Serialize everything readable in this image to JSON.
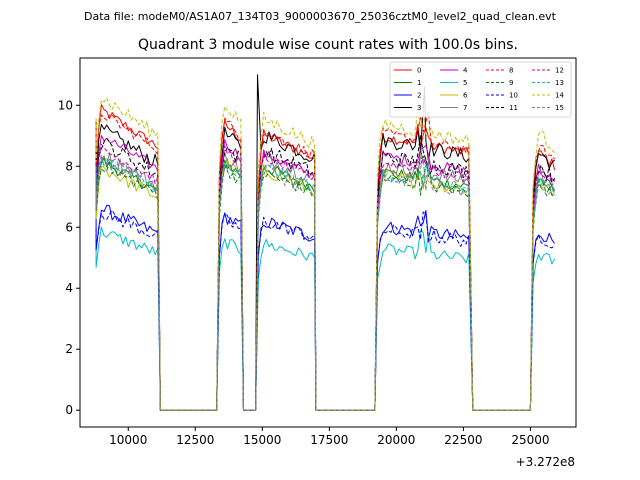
{
  "chart_data": {
    "type": "line",
    "suptitle": "Data file: modeM0/AS1A07_134T03_9000003670_25036cztM0_level2_quad_clean.evt",
    "title": "Quadrant 3 module wise count rates with 100.0s bins.",
    "xlabel": "",
    "ylabel": "",
    "x_offset_label": "+3.272e8",
    "xlim": [
      8200,
      26700
    ],
    "ylim": [
      -0.55,
      11.55
    ],
    "x_ticks": [
      10000,
      12500,
      15000,
      17500,
      20000,
      22500,
      25000
    ],
    "x_tick_labels": [
      "10000",
      "12500",
      "15000",
      "17500",
      "20000",
      "22500",
      "25000"
    ],
    "y_ticks": [
      0,
      2,
      4,
      6,
      8,
      10
    ],
    "y_tick_labels": [
      "0",
      "2",
      "4",
      "6",
      "8",
      "10"
    ],
    "gaps": [
      [
        11200,
        13300
      ],
      [
        14300,
        14750
      ],
      [
        17000,
        19200
      ],
      [
        22850,
        25000
      ]
    ],
    "segments": [
      [
        8800,
        11100
      ],
      [
        13400,
        14200
      ],
      [
        14850,
        16950
      ],
      [
        19300,
        22750
      ],
      [
        25100,
        25900
      ]
    ],
    "spikes": [
      [
        14820,
        11.0
      ],
      [
        21050,
        10.6
      ]
    ],
    "series": [
      {
        "name": "0",
        "color": "#ff0000",
        "dashed": false,
        "levels": [
          9.4,
          9.0,
          8.6,
          8.5,
          8.1
        ]
      },
      {
        "name": "1",
        "color": "#008000",
        "dashed": false,
        "levels": [
          7.8,
          7.8,
          7.6,
          7.4,
          7.3
        ]
      },
      {
        "name": "2",
        "color": "#0000ff",
        "dashed": false,
        "levels": [
          6.3,
          6.1,
          5.9,
          5.7,
          5.6
        ]
      },
      {
        "name": "3",
        "color": "#000000",
        "dashed": false,
        "levels": [
          8.8,
          8.7,
          8.6,
          8.4,
          8.1
        ]
      },
      {
        "name": "4",
        "color": "#bf00bf",
        "dashed": false,
        "levels": [
          8.6,
          8.4,
          8.0,
          7.9,
          7.6
        ]
      },
      {
        "name": "5",
        "color": "#00bfbf",
        "dashed": false,
        "levels": [
          5.6,
          5.3,
          5.2,
          5.0,
          4.9
        ]
      },
      {
        "name": "6",
        "color": "#bfbf00",
        "dashed": false,
        "levels": [
          7.6,
          7.8,
          7.5,
          7.3,
          7.2
        ]
      },
      {
        "name": "7",
        "color": "#808080",
        "dashed": false,
        "levels": [
          8.0,
          8.0,
          7.9,
          7.6,
          7.4
        ]
      },
      {
        "name": "8",
        "color": "#ff0000",
        "dashed": true,
        "levels": [
          9.3,
          9.1,
          8.7,
          8.6,
          8.3
        ]
      },
      {
        "name": "9",
        "color": "#008000",
        "dashed": true,
        "levels": [
          7.7,
          7.6,
          7.4,
          7.2,
          7.1
        ]
      },
      {
        "name": "10",
        "color": "#0000ff",
        "dashed": true,
        "levels": [
          6.2,
          6.0,
          5.9,
          5.6,
          5.5
        ]
      },
      {
        "name": "11",
        "color": "#000000",
        "dashed": true,
        "levels": [
          8.4,
          8.3,
          8.1,
          7.9,
          7.7
        ]
      },
      {
        "name": "12",
        "color": "#bf00bf",
        "dashed": true,
        "levels": [
          8.2,
          8.2,
          7.9,
          7.7,
          7.5
        ]
      },
      {
        "name": "13",
        "color": "#00bfbf",
        "dashed": true,
        "levels": [
          7.9,
          7.7,
          7.6,
          7.3,
          7.2
        ]
      },
      {
        "name": "14",
        "color": "#bfbf00",
        "dashed": true,
        "levels": [
          9.8,
          9.6,
          9.1,
          8.9,
          8.7
        ]
      },
      {
        "name": "15",
        "color": "#808080",
        "dashed": true,
        "levels": [
          7.9,
          7.7,
          7.5,
          7.3,
          7.1
        ]
      }
    ]
  }
}
